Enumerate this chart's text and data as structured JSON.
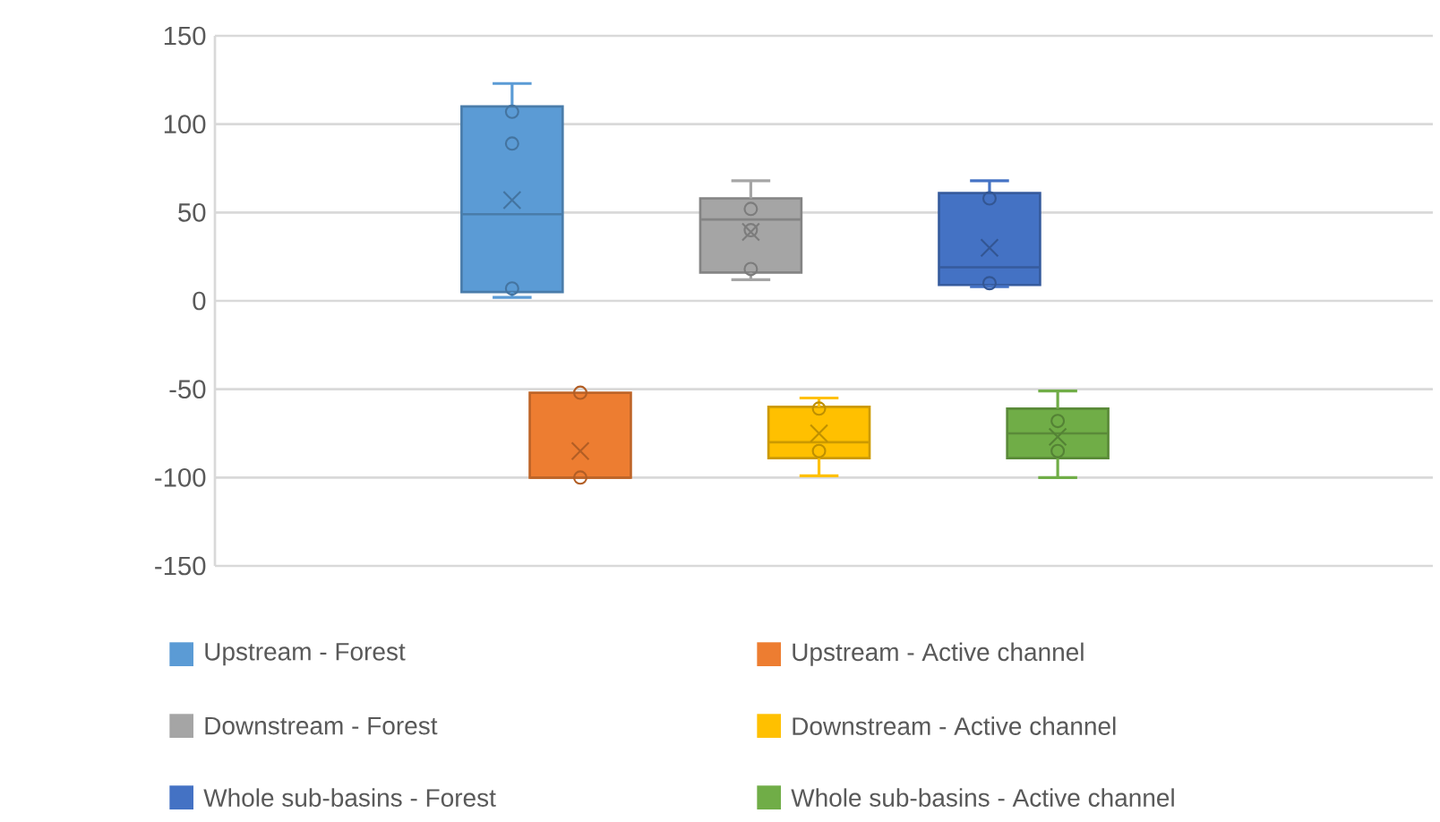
{
  "chart_data": {
    "type": "box",
    "categories": [
      null
    ],
    "series": [
      {
        "name": "Upstream - Forest",
        "color": "#5b9bd5",
        "boxes": [
          {
            "low": 2,
            "q1": 5,
            "median": 49,
            "q3": 110,
            "high": 123,
            "mean": 57,
            "outliers": [
              107,
              89,
              7
            ]
          }
        ]
      },
      {
        "name": "Upstream - Active channel",
        "color": "#ed7d31",
        "boxes": [
          {
            "low": -100,
            "q1": -100,
            "median": -100,
            "q3": -52,
            "high": -52,
            "mean": -85,
            "outliers": [
              -52,
              -100
            ]
          }
        ]
      },
      {
        "name": "Downstream - Forest",
        "color": "#a5a5a5",
        "boxes": [
          {
            "low": 12,
            "q1": 16,
            "median": 46,
            "q3": 58,
            "high": 68,
            "mean": 39,
            "outliers": [
              52,
              40,
              18
            ]
          }
        ]
      },
      {
        "name": "Downstream - Active channel",
        "color": "#ffc000",
        "boxes": [
          {
            "low": -99,
            "q1": -89,
            "median": -80,
            "q3": -60,
            "high": -55,
            "mean": -75,
            "outliers": [
              -61,
              -85
            ]
          }
        ]
      },
      {
        "name": "Whole sub-basins - Forest",
        "color": "#4472c4",
        "boxes": [
          {
            "low": 8,
            "q1": 9,
            "median": 19,
            "q3": 61,
            "high": 68,
            "mean": 30,
            "outliers": [
              58,
              10
            ]
          }
        ]
      },
      {
        "name": "Whole sub-basins - Active channel",
        "color": "#70ad47",
        "boxes": [
          {
            "low": -100,
            "q1": -89,
            "median": -75,
            "q3": -61,
            "high": -51,
            "mean": -77,
            "outliers": [
              -68,
              -85
            ]
          }
        ]
      }
    ],
    "ylim": [
      -150,
      150
    ],
    "yticks": [
      -150,
      -100,
      -50,
      0,
      50,
      100,
      150
    ],
    "grid": "y",
    "legend": "bottom",
    "marker": "circle"
  }
}
